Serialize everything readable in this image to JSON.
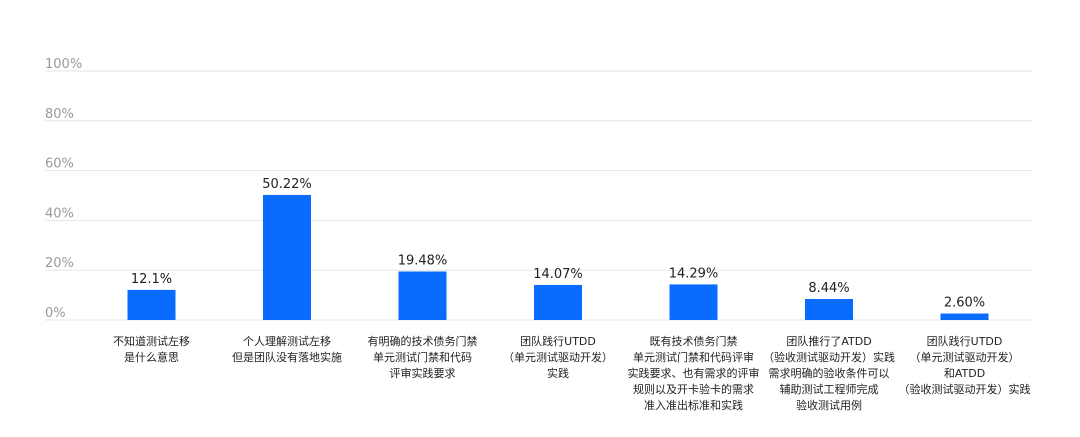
{
  "chart_data": {
    "type": "bar",
    "title": "",
    "xlabel": "",
    "ylabel": "",
    "ylim": [
      0,
      100
    ],
    "y_ticks": [
      "0%",
      "20%",
      "40%",
      "60%",
      "80%",
      "100%"
    ],
    "grid": true,
    "legend": "none",
    "bar_color": "#0A6CFF",
    "categories": [
      [
        "不知道测试左移",
        "是什么意思"
      ],
      [
        "个人理解测试左移",
        "但是团队没有落地实施"
      ],
      [
        "有明确的技术债务门禁",
        "单元测试门禁和代码",
        "评审实践要求"
      ],
      [
        "团队践行UTDD",
        "（单元测试驱动开发）",
        "实践"
      ],
      [
        "既有技术债务门禁",
        "单元测试门禁和代码评审",
        "实践要求、也有需求的评审",
        "规则以及开卡验卡的需求",
        "准入准出标准和实践"
      ],
      [
        "团队推行了ATDD",
        "（验收测试驱动开发）实践",
        "需求明确的验收条件可以",
        "辅助测试工程师完成",
        "验收测试用例"
      ],
      [
        "团队践行UTDD",
        "（单元测试驱动开发）",
        "和ATDD",
        "（验收测试驱动开发）实践"
      ]
    ],
    "values": [
      12.1,
      50.22,
      19.48,
      14.07,
      14.29,
      8.44,
      2.6
    ],
    "data_labels": [
      "12.1%",
      "50.22%",
      "19.48%",
      "14.07%",
      "14.29%",
      "8.44%",
      "2.60%"
    ]
  }
}
